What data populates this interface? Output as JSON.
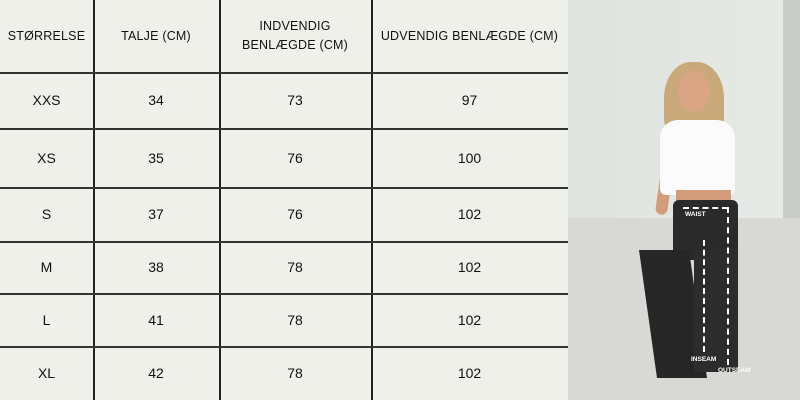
{
  "table": {
    "headers": [
      "STØRRELSE",
      "TALJE (CM)",
      "INDVENDIG BENLÆGDE (CM)",
      "UDVENDIG BENLÆGDE (CM)"
    ],
    "rows": [
      [
        "XXS",
        "34",
        "73",
        "97"
      ],
      [
        "XS",
        "35",
        "76",
        "100"
      ],
      [
        "S",
        "37",
        "76",
        "102"
      ],
      [
        "M",
        "38",
        "78",
        "102"
      ],
      [
        "L",
        "41",
        "78",
        "102"
      ],
      [
        "XL",
        "42",
        "78",
        "102"
      ]
    ]
  },
  "photo": {
    "labels": {
      "waist": "WAIST",
      "inseam": "INSEAM",
      "outseam": "OUTSEAM"
    }
  },
  "colors": {
    "background": "#f0f0eb",
    "lines": "#222222"
  }
}
